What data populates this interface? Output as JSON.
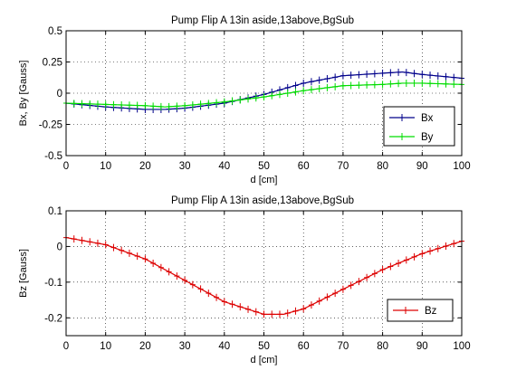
{
  "chart_data": [
    {
      "type": "line",
      "title": "Pump Flip A 13in aside,13above,BgSub",
      "xlabel": "d [cm]",
      "ylabel": "Bx, By [Gauss]",
      "xlim": [
        0,
        100
      ],
      "ylim": [
        -0.5,
        0.5
      ],
      "xticks": [
        0,
        10,
        20,
        30,
        40,
        50,
        60,
        70,
        80,
        90,
        100
      ],
      "yticks": [
        -0.5,
        -0.25,
        0,
        0.25,
        0.5
      ],
      "ytick_labels": [
        "-0.5",
        "-0.25",
        "0",
        "0.25",
        "0.5"
      ],
      "grid": true,
      "legend": "bottom-right",
      "x": [
        0,
        10,
        20,
        25,
        30,
        40,
        50,
        60,
        70,
        80,
        85,
        90,
        100
      ],
      "series": [
        {
          "name": "Bx",
          "color": "#00008b",
          "marker": "+",
          "values": [
            -0.08,
            -0.11,
            -0.13,
            -0.13,
            -0.12,
            -0.08,
            -0.01,
            0.08,
            0.14,
            0.16,
            0.17,
            0.15,
            0.12
          ]
        },
        {
          "name": "By",
          "color": "#00dd00",
          "marker": "+",
          "values": [
            -0.08,
            -0.09,
            -0.1,
            -0.11,
            -0.1,
            -0.07,
            -0.03,
            0.02,
            0.06,
            0.07,
            0.08,
            0.08,
            0.07
          ]
        }
      ]
    },
    {
      "type": "line",
      "title": "Pump Flip A 13in aside,13above,BgSub",
      "xlabel": "d [cm]",
      "ylabel": "Bz [Gauss]",
      "xlim": [
        0,
        100
      ],
      "ylim": [
        -0.25,
        0.1
      ],
      "xticks": [
        0,
        10,
        20,
        30,
        40,
        50,
        60,
        70,
        80,
        90,
        100
      ],
      "yticks": [
        -0.2,
        -0.1,
        0,
        0.1
      ],
      "ytick_labels": [
        "-0.2",
        "-0.1",
        "0",
        "0.1"
      ],
      "grid": true,
      "legend": "bottom-right",
      "x": [
        0,
        10,
        20,
        30,
        40,
        50,
        55,
        60,
        70,
        80,
        90,
        100
      ],
      "series": [
        {
          "name": "Bz",
          "color": "#dd0000",
          "marker": "+",
          "values": [
            0.025,
            0.005,
            -0.035,
            -0.095,
            -0.155,
            -0.19,
            -0.19,
            -0.175,
            -0.12,
            -0.065,
            -0.02,
            0.015
          ]
        }
      ]
    }
  ]
}
